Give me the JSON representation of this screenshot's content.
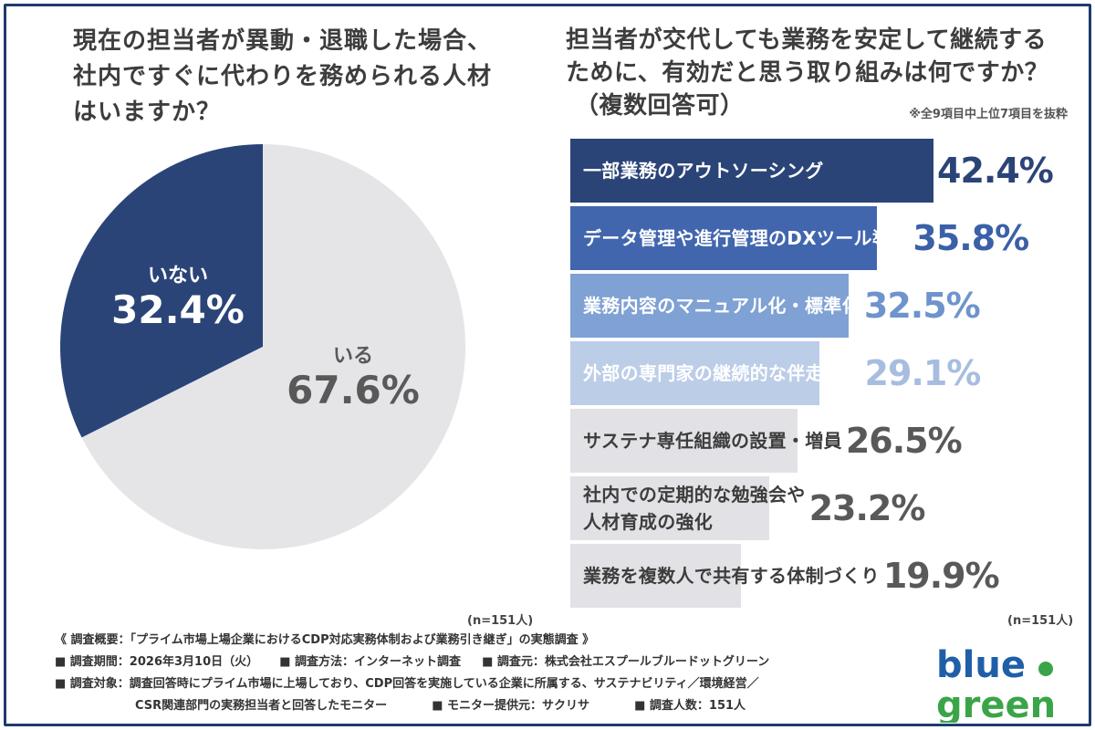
{
  "left_chart": {
    "title_lines": [
      "現在の担当者が異動・退職した場合、",
      "社内ですぐに代わりを務められる人材",
      "はいますか？"
    ],
    "n_note": "(n=151人)"
  },
  "right_chart": {
    "title_lines": [
      "担当者が交代しても業務を安定して継続する",
      "ために、有効だと思う取り組みは何ですか？",
      "（複数回答可）"
    ],
    "excerpt_note": "※全9項目中上位7項目を抜粋",
    "n_note": "(n=151人)"
  },
  "colors": {
    "navy": "#2b4478",
    "pie_light": "#e5e5e8",
    "frame": "#1f3b6e",
    "logo_blue": "#1f5fa8",
    "logo_green": "#3aa548"
  },
  "chart_data": [
    {
      "type": "pie",
      "title": "現在の担当者が異動・退職した場合、社内ですぐに代わりを務められる人材はいますか？",
      "slices": [
        {
          "label": "いない",
          "value": 32.4,
          "display": "32.4%",
          "color": "#2b4478"
        },
        {
          "label": "いる",
          "value": 67.6,
          "display": "67.6%",
          "color": "#e5e5e8"
        }
      ]
    },
    {
      "type": "bar",
      "orientation": "horizontal",
      "title": "担当者が交代しても業務を安定して継続するために、有効だと思う取り組みは何ですか？（複数回答可）",
      "xlim": [
        0,
        50
      ],
      "bars": [
        {
          "label": "一部業務のアウトソーシング",
          "value": 42.4,
          "display": "42.4%",
          "fill": "#2b4478",
          "label_color": "#ffffff",
          "value_color": "#2b4478"
        },
        {
          "label": "データ管理や進行管理のDXツール導入",
          "value": 35.8,
          "display": "35.8%",
          "fill": "#4166ad",
          "label_color": "#ffffff",
          "value_color": "#3b60a8"
        },
        {
          "label": "業務内容のマニュアル化・標準化",
          "value": 32.5,
          "display": "32.5%",
          "fill": "#7fa1d4",
          "label_color": "#ffffff",
          "value_color": "#6f93cc"
        },
        {
          "label": "外部の専門家の継続的な伴走支援",
          "value": 29.1,
          "display": "29.1%",
          "fill": "#bccde8",
          "label_color": "#ffffff",
          "value_color": "#a7bde0"
        },
        {
          "label": "サステナ専任組織の設置・増員",
          "value": 26.5,
          "display": "26.5%",
          "fill": "#e2e2e6",
          "label_color": "#3d3d3d",
          "value_color": "#595959"
        },
        {
          "label": "社内での定期的な勉強会や\n人材育成の強化",
          "value": 23.2,
          "display": "23.2%",
          "fill": "#e2e2e6",
          "label_color": "#3d3d3d",
          "value_color": "#595959"
        },
        {
          "label": "業務を複数人で共有する体制づくり",
          "value": 19.9,
          "display": "19.9%",
          "fill": "#e2e2e6",
          "label_color": "#3d3d3d",
          "value_color": "#595959"
        }
      ]
    }
  ],
  "footer": {
    "heading": "《 調査概要：「プライム市場上場企業におけるCDP対応実務体制および業務引き継ぎ」の実態調査 》",
    "period": "■ 調査期間：2026年3月10日（火）",
    "method": "■ 調査方法：インターネット調査",
    "organizer": "■ 調査元：株式会社エスプールブルードットグリーン",
    "target_1": "■ 調査対象：調査回答時にプライム市場に上場しており、CDP回答を実施している企業に所属する、サステナビリティ／環境経営／",
    "target_2": "CSR関連部門の実務担当者と回答したモニター",
    "provider": "■ モニター提供元：サクリサ",
    "count": "■ 調査人数：151人"
  },
  "logo": {
    "line1": "blue",
    "line2": "green",
    "icon": "bluegreen-logo"
  }
}
